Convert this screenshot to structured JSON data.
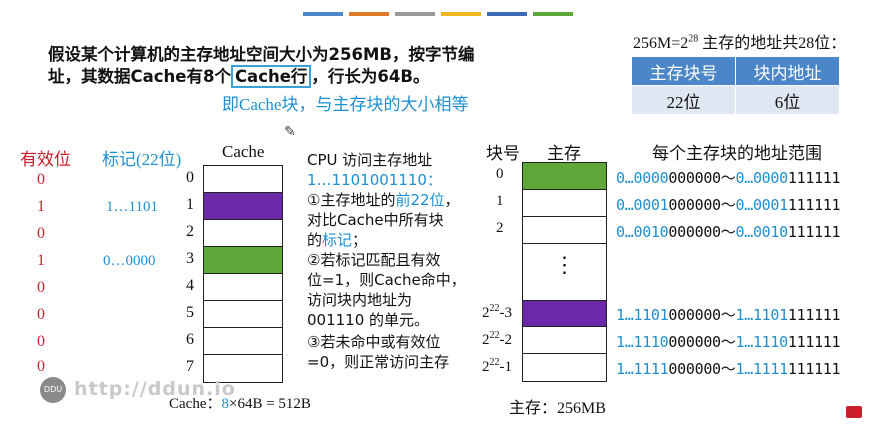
{
  "colors": {
    "cache_purple": "#6a2aa8",
    "cache_green": "#5ea83a",
    "accent_blue": "#1e8fd0",
    "valid_red": "#c8202c",
    "table_header": "#4a86c8",
    "table_body": "#dfe7f2"
  },
  "topbar_colors": [
    "#4a86c8",
    "#e07a2a",
    "#9a9a9a",
    "#f0b820",
    "#3a6ab8",
    "#5ea83a"
  ],
  "problem": {
    "line1": "假设某个计算机的主存地址空间大小为256MB，按字节编",
    "line2_pre": "址，其数据Cache有8个",
    "line2_box": "Cache行",
    "line2_post": "，行长为64B。",
    "note": "即Cache块，与主存块的大小相等"
  },
  "address": {
    "caption_pre": "256M=2",
    "caption_exp": "28",
    "caption_post": " 主存的地址共28位：",
    "headers": [
      "主存块号",
      "块内地址"
    ],
    "values": [
      "22位",
      "6位"
    ]
  },
  "cache": {
    "valid_header": "有效位",
    "tag_header": "标记(22位)",
    "title": "Cache",
    "rows": [
      {
        "index": "0",
        "valid": "0",
        "tag": "",
        "fill": "none"
      },
      {
        "index": "1",
        "valid": "1",
        "tag": "1…1101",
        "fill": "purple"
      },
      {
        "index": "2",
        "valid": "0",
        "tag": "",
        "fill": "none"
      },
      {
        "index": "3",
        "valid": "1",
        "tag": "0…0000",
        "fill": "green"
      },
      {
        "index": "4",
        "valid": "0",
        "tag": "",
        "fill": "none"
      },
      {
        "index": "5",
        "valid": "0",
        "tag": "",
        "fill": "none"
      },
      {
        "index": "6",
        "valid": "0",
        "tag": "",
        "fill": "none"
      },
      {
        "index": "7",
        "valid": "0",
        "tag": "",
        "fill": "none"
      }
    ],
    "size_pre": "Cache：",
    "size_blue": "8",
    "size_post": "×64B = 512B"
  },
  "procedure": {
    "l1": "CPU 访问主存地址",
    "l2": "1…1101001110：",
    "l3_pre": "①主存地址的",
    "l3_blue": "前22位",
    "l3_post": "，",
    "l4": "对比Cache中所有块",
    "l5_pre": "的",
    "l5_blue": "标记",
    "l5_post": "；",
    "l6": "②若标记匹配且有效",
    "l7": "位=1，则Cache命中，",
    "l8": "访问块内地址为",
    "l9": "001110 的单元。",
    "l10": "③若未命中或有效位",
    "l11": "=0，则正常访问主存"
  },
  "memory": {
    "block_header": "块号",
    "mem_header": "主存",
    "range_header": "每个主存块的地址范围",
    "ellipsis": "⋮",
    "rows": [
      {
        "label": "0",
        "sup": "",
        "suffix": "",
        "start_blue": "0…0000",
        "start_black": "000000",
        "tilde": "～",
        "end_blue": "0…0000",
        "end_black": "111111",
        "fill": "green"
      },
      {
        "label": "1",
        "sup": "",
        "suffix": "",
        "start_blue": "0…0001",
        "start_black": "000000",
        "tilde": "～",
        "end_blue": "0…0001",
        "end_black": "111111",
        "fill": "none"
      },
      {
        "label": "2",
        "sup": "",
        "suffix": "",
        "start_blue": "0…0010",
        "start_black": "000000",
        "tilde": "～",
        "end_blue": "0…0010",
        "end_black": "111111",
        "fill": "none"
      },
      {
        "label": "2",
        "sup": "22",
        "suffix": "-3",
        "start_blue": "1…1101",
        "start_black": "000000",
        "tilde": "～",
        "end_blue": "1…1101",
        "end_black": "111111",
        "fill": "purple"
      },
      {
        "label": "2",
        "sup": "22",
        "suffix": "-2",
        "start_blue": "1…1110",
        "start_black": "000000",
        "tilde": "～",
        "end_blue": "1…1110",
        "end_black": "111111",
        "fill": "none"
      },
      {
        "label": "2",
        "sup": "22",
        "suffix": "-1",
        "start_blue": "1…1111",
        "start_black": "000000",
        "tilde": "～",
        "end_blue": "1…1111",
        "end_black": "111111",
        "fill": "none"
      }
    ],
    "size_label": "主存：256MB"
  },
  "watermark": {
    "logo": "DDU",
    "text": "http://ddun.io"
  }
}
